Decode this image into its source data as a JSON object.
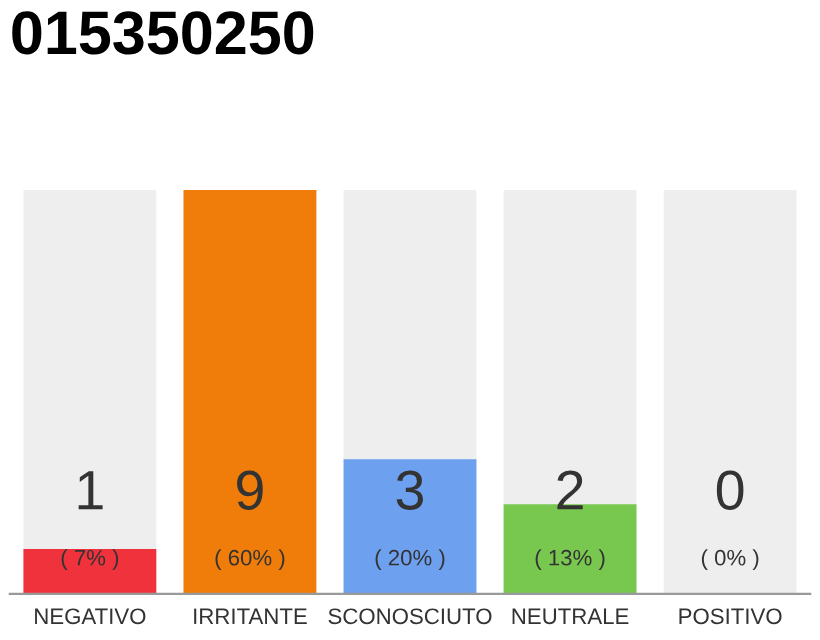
{
  "chart_data": {
    "type": "bar",
    "title": "015350250",
    "categories": [
      "NEGATIVO",
      "IRRITANTE",
      "SCONOSCIUTO",
      "NEUTRALE",
      "POSITIVO"
    ],
    "values": [
      1,
      9,
      3,
      2,
      0
    ],
    "colors": [
      "#f0323c",
      "#f07d0a",
      "#6ea0f0",
      "#78c850",
      "#cccccc"
    ],
    "data_labels": true,
    "annotations": [
      "( 7% )",
      "( 60% )",
      "( 20% )",
      "( 13% )",
      "( 0% )"
    ],
    "grid": "x",
    "legend": false
  }
}
